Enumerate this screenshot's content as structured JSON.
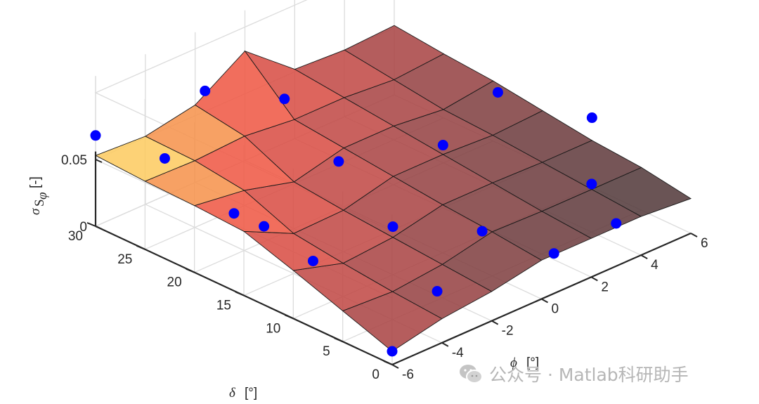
{
  "chart_data": {
    "type": "surface",
    "x_name": "phi",
    "y_name": "delta",
    "x": [
      -6,
      -4,
      -2,
      0,
      2,
      4,
      6
    ],
    "y": [
      0,
      5,
      10,
      15,
      20,
      25,
      30
    ],
    "surface_grid": "x_by_y",
    "z": [
      [
        0.01,
        0.023,
        0.036,
        0.048,
        0.05,
        0.051,
        0.053
      ],
      [
        0.018,
        0.021,
        0.025,
        0.03,
        0.045,
        0.05,
        0.051
      ],
      [
        0.022,
        0.025,
        0.028,
        0.031,
        0.035,
        0.052,
        0.058
      ],
      [
        0.029,
        0.033,
        0.036,
        0.04,
        0.044,
        0.048,
        0.082
      ],
      [
        0.029,
        0.032,
        0.036,
        0.04,
        0.044,
        0.048,
        0.052
      ],
      [
        0.029,
        0.032,
        0.035,
        0.038,
        0.04,
        0.045,
        0.05
      ],
      [
        0.026,
        0.032,
        0.035,
        0.04,
        0.045,
        0.048,
        0.052
      ]
    ],
    "markers": [
      {
        "x": -6,
        "y": 30,
        "z": 0.068
      },
      {
        "x": -6,
        "y": 23,
        "z": 0.075
      },
      {
        "x": -6,
        "y": 16,
        "z": 0.058
      },
      {
        "x": -6,
        "y": 8,
        "z": 0.05
      },
      {
        "x": -6,
        "y": 0,
        "z": 0.01
      },
      {
        "x": -4,
        "y": 18,
        "z": 0.025
      },
      {
        "x": -3,
        "y": 3,
        "z": 0.02
      },
      {
        "x": -2,
        "y": 10,
        "z": 0.036
      },
      {
        "x": -1,
        "y": 18,
        "z": 0.049
      },
      {
        "x": 0,
        "y": 26,
        "z": 0.06
      },
      {
        "x": -2,
        "y": 29,
        "z": 0.072
      },
      {
        "x": 0,
        "y": 6,
        "z": 0.03
      },
      {
        "x": 0.5,
        "y": 0,
        "z": 0.03
      },
      {
        "x": 2,
        "y": 15,
        "z": 0.047
      },
      {
        "x": 3,
        "y": 0,
        "z": 0.032
      },
      {
        "x": 4,
        "y": 5,
        "z": 0.036
      },
      {
        "x": 5,
        "y": 17,
        "z": 0.055
      },
      {
        "x": 6,
        "y": 10,
        "z": 0.052
      }
    ],
    "xlim": [
      -6,
      6
    ],
    "ylim": [
      0,
      30
    ],
    "zlim": [
      0,
      0.05
    ],
    "xticks": [
      "-6",
      "-4",
      "-2",
      "0",
      "2",
      "4",
      "6"
    ],
    "yticks": [
      "0",
      "5",
      "10",
      "15",
      "20",
      "25",
      "30"
    ],
    "zticks": [
      "0",
      "0.05"
    ],
    "xlabel": {
      "symbol": "ϕ",
      "unit": "[°]"
    },
    "ylabel": {
      "symbol": "δ",
      "unit": "[°]"
    },
    "zlabel": {
      "symbol": "σ",
      "sub": "S",
      "subsub": "φ",
      "unit": "[-]"
    },
    "colormap": "hot",
    "marker_color": "#0000ff",
    "grid": true
  },
  "watermark": {
    "text": "公众号 · Matlab科研助手",
    "icon": "wechat-icon"
  }
}
